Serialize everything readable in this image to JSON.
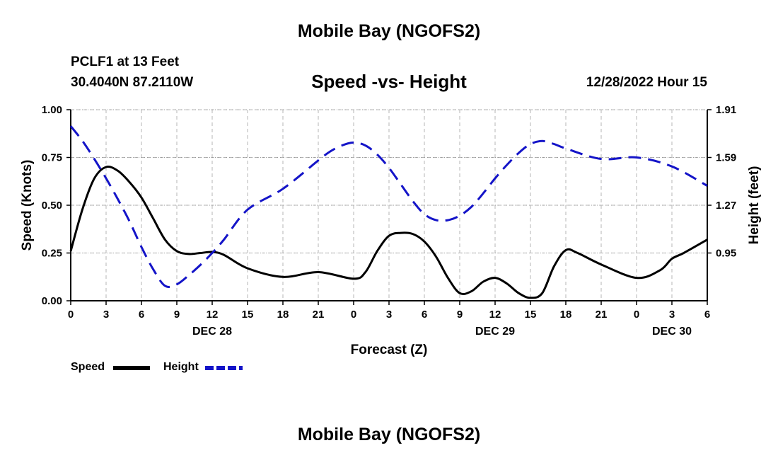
{
  "page": {
    "title": "Mobile Bay (NGOFS2)",
    "repeat_title": "Mobile Bay (NGOFS2)",
    "station": "PCLF1 at 13 Feet",
    "coordinates": "30.4040N  87.2110W",
    "timestamp": "12/28/2022 Hour 15"
  },
  "colors": {
    "speed": "#000000",
    "height": "#1414c8",
    "grid": "#b4b4b4"
  },
  "chart_data": {
    "type": "line",
    "title": "Speed -vs- Height",
    "xlabel": "Forecast (Z)",
    "ylabel": "Speed (Knots)",
    "y2label": "Height (feet)",
    "x_range": [
      0,
      54
    ],
    "ylim": [
      0,
      1
    ],
    "y2lim": [
      0.63,
      1.91
    ],
    "x_ticks": [
      0,
      3,
      6,
      9,
      12,
      15,
      18,
      21,
      24,
      27,
      30,
      33,
      36,
      39,
      42,
      45,
      48,
      51,
      54
    ],
    "x_tick_labels": [
      "0",
      "3",
      "6",
      "9",
      "12",
      "15",
      "18",
      "21",
      "0",
      "3",
      "6",
      "9",
      "12",
      "15",
      "18",
      "21",
      "0",
      "3",
      "6"
    ],
    "date_labels": [
      {
        "x": 12,
        "label": "DEC 28"
      },
      {
        "x": 36,
        "label": "DEC 29"
      },
      {
        "x": 51,
        "label": "DEC 30"
      }
    ],
    "y_ticks": [
      0.0,
      0.25,
      0.5,
      0.75,
      1.0
    ],
    "y_tick_labels": [
      "0.00",
      "0.25",
      "0.50",
      "0.75",
      "1.00"
    ],
    "y2_ticks": [
      0.95,
      1.27,
      1.59,
      1.91
    ],
    "y2_tick_labels": [
      "0.95",
      "1.27",
      "1.59",
      "1.91"
    ],
    "grid": true,
    "series": [
      {
        "name": "Speed",
        "axis": "left",
        "style": "solid",
        "x": [
          0,
          1,
          2,
          3,
          4,
          5,
          6,
          7,
          8,
          9,
          10,
          11,
          12,
          13,
          15,
          18,
          21,
          24,
          25,
          26,
          27,
          28,
          29,
          30,
          31,
          32,
          33,
          34,
          35,
          36,
          37,
          38,
          39,
          40,
          41,
          42,
          43,
          45,
          48,
          50,
          51,
          52,
          54
        ],
        "values": [
          0.26,
          0.48,
          0.64,
          0.7,
          0.68,
          0.62,
          0.54,
          0.43,
          0.32,
          0.26,
          0.245,
          0.25,
          0.255,
          0.24,
          0.17,
          0.125,
          0.15,
          0.115,
          0.15,
          0.26,
          0.34,
          0.355,
          0.35,
          0.31,
          0.23,
          0.12,
          0.04,
          0.05,
          0.1,
          0.12,
          0.09,
          0.04,
          0.015,
          0.04,
          0.18,
          0.265,
          0.25,
          0.19,
          0.12,
          0.16,
          0.22,
          0.25,
          0.32
        ]
      },
      {
        "name": "Height",
        "axis": "right",
        "style": "dashed",
        "x": [
          0,
          1,
          2,
          3,
          4,
          5,
          6,
          7,
          8,
          9,
          10,
          11,
          12,
          13,
          15,
          18,
          21,
          22,
          23,
          24,
          25,
          26,
          27,
          28,
          29,
          30,
          31,
          32,
          33,
          34,
          35,
          36,
          37,
          38,
          39,
          40,
          41,
          42,
          45,
          48,
          51,
          54
        ],
        "values": [
          1.8,
          1.7,
          1.58,
          1.45,
          1.31,
          1.16,
          0.99,
          0.84,
          0.73,
          0.74,
          0.8,
          0.87,
          0.95,
          1.04,
          1.24,
          1.38,
          1.57,
          1.63,
          1.67,
          1.69,
          1.67,
          1.61,
          1.52,
          1.41,
          1.3,
          1.21,
          1.17,
          1.17,
          1.2,
          1.26,
          1.35,
          1.45,
          1.54,
          1.62,
          1.68,
          1.7,
          1.68,
          1.65,
          1.58,
          1.59,
          1.53,
          1.4
        ]
      }
    ],
    "legend": [
      {
        "label": "Speed",
        "style": "solid"
      },
      {
        "label": "Height",
        "style": "dashed"
      }
    ],
    "legend_position": "bottom-left"
  }
}
